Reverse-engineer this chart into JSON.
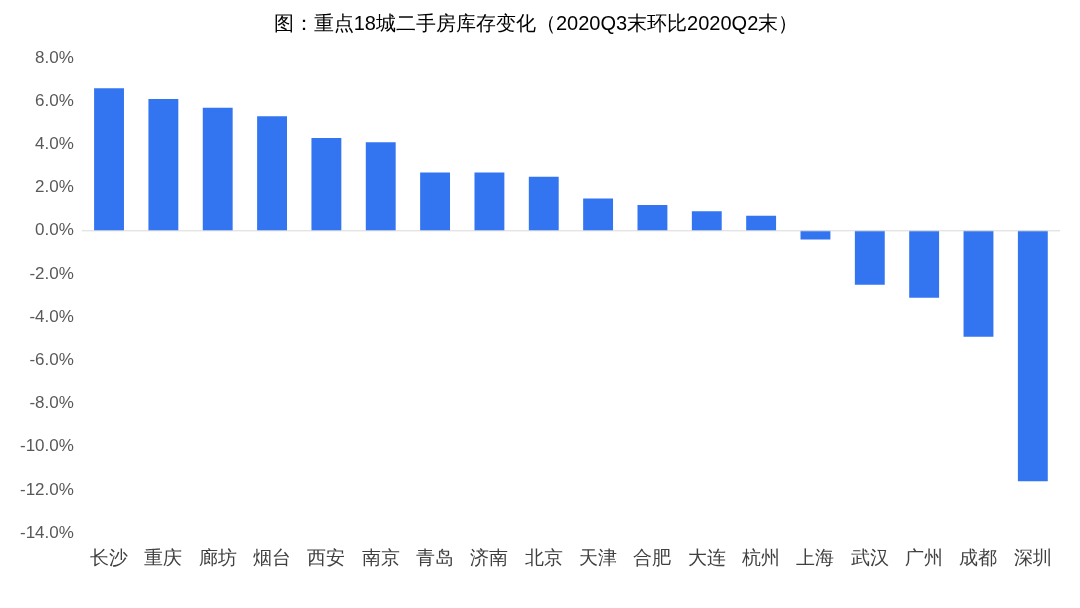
{
  "chart_data": {
    "type": "bar",
    "title": "图：重点18城二手房库存变化（2020Q3末环比2020Q2末）",
    "categories": [
      "长沙",
      "重庆",
      "廊坊",
      "烟台",
      "西安",
      "南京",
      "青岛",
      "济南",
      "北京",
      "天津",
      "合肥",
      "大连",
      "杭州",
      "上海",
      "武汉",
      "广州",
      "成都",
      "深圳"
    ],
    "values": [
      6.6,
      6.1,
      5.7,
      5.3,
      4.3,
      4.1,
      2.7,
      2.7,
      2.5,
      1.5,
      1.2,
      0.9,
      0.7,
      -0.4,
      -2.5,
      -3.1,
      -4.9,
      -11.6
    ],
    "color": "#3375f0",
    "ylim": [
      -14,
      8
    ],
    "yticks": [
      {
        "value": -14,
        "label": "-14.0%"
      },
      {
        "value": -12,
        "label": "-12.0%"
      },
      {
        "value": -10,
        "label": "-10.0%"
      },
      {
        "value": -8,
        "label": "-8.0%"
      },
      {
        "value": -6,
        "label": "-6.0%"
      },
      {
        "value": -4,
        "label": "-4.0%"
      },
      {
        "value": -2,
        "label": "-2.0%"
      },
      {
        "value": 0,
        "label": "0.0%"
      },
      {
        "value": 2,
        "label": "2.0%"
      },
      {
        "value": 4,
        "label": "4.0%"
      },
      {
        "value": 6,
        "label": "6.0%"
      },
      {
        "value": 8,
        "label": "8.0%"
      }
    ],
    "ref_lines": [
      {
        "axis": "y",
        "value": 0,
        "color": "#d9d9d9"
      }
    ],
    "grid": false,
    "legend": false
  }
}
